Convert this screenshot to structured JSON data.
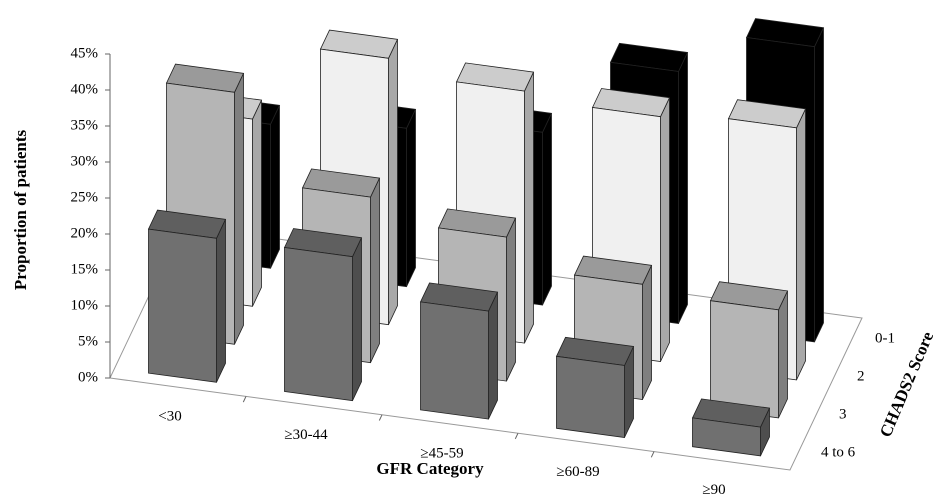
{
  "chart_data": {
    "type": "bar3d",
    "y_label": "Proportion of patients",
    "x_label": "GFR Category",
    "z_label": "CHADS2 Score",
    "categories": [
      "<30",
      "≥30-44",
      "≥45-59",
      "≥60-89",
      "≥90"
    ],
    "series": [
      {
        "name": "4 to 6",
        "color": "#707070",
        "values": [
          20,
          20,
          15,
          10,
          4
        ]
      },
      {
        "name": "3",
        "color": "#b5b5b5",
        "values": [
          35,
          23,
          20,
          16,
          15
        ]
      },
      {
        "name": "2",
        "color": "#f0f0f0",
        "values": [
          26,
          37,
          35,
          34,
          35
        ]
      },
      {
        "name": "0-1",
        "color": "#000000",
        "values": [
          20,
          22,
          24,
          35,
          41
        ]
      }
    ],
    "ylim": [
      0,
      45
    ],
    "yticks": [
      {
        "value": 0,
        "label": "0%"
      },
      {
        "value": 5,
        "label": "5%"
      },
      {
        "value": 10,
        "label": "10%"
      },
      {
        "value": 15,
        "label": "15%"
      },
      {
        "value": 20,
        "label": "20%"
      },
      {
        "value": 25,
        "label": "25%"
      },
      {
        "value": 30,
        "label": "30%"
      },
      {
        "value": 35,
        "label": "35%"
      },
      {
        "value": 40,
        "label": "40%"
      },
      {
        "value": 45,
        "label": "45%"
      }
    ]
  }
}
